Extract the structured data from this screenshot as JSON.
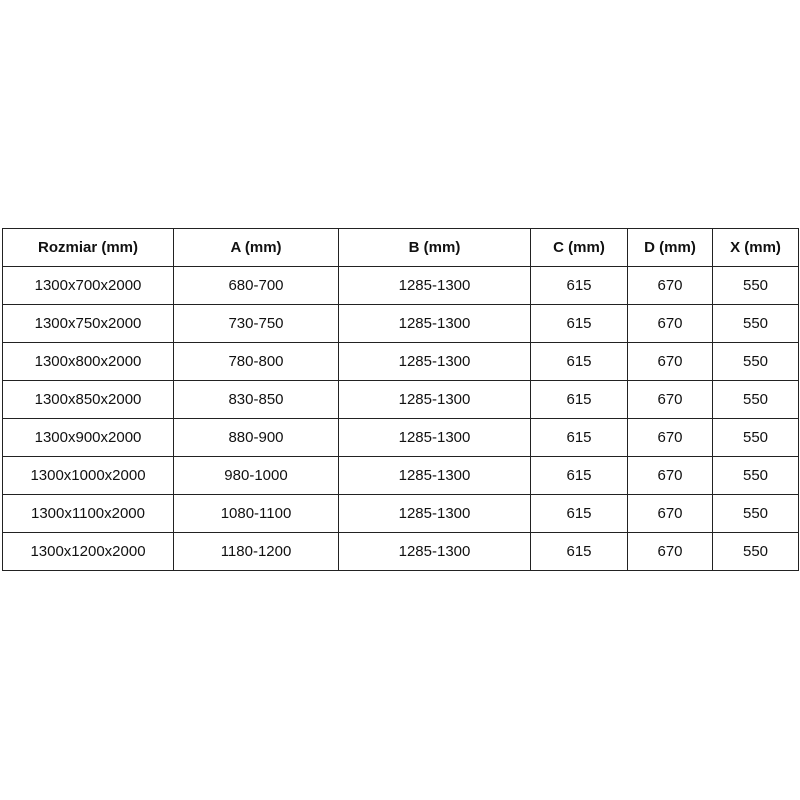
{
  "table": {
    "headers": [
      "Rozmiar (mm)",
      "A (mm)",
      "B (mm)",
      "C (mm)",
      "D (mm)",
      "X (mm)"
    ],
    "rows": [
      [
        "1300x700x2000",
        "680-700",
        "1285-1300",
        "615",
        "670",
        "550"
      ],
      [
        "1300x750x2000",
        "730-750",
        "1285-1300",
        "615",
        "670",
        "550"
      ],
      [
        "1300x800x2000",
        "780-800",
        "1285-1300",
        "615",
        "670",
        "550"
      ],
      [
        "1300x850x2000",
        "830-850",
        "1285-1300",
        "615",
        "670",
        "550"
      ],
      [
        "1300x900x2000",
        "880-900",
        "1285-1300",
        "615",
        "670",
        "550"
      ],
      [
        "1300x1000x2000",
        "980-1000",
        "1285-1300",
        "615",
        "670",
        "550"
      ],
      [
        "1300x1100x2000",
        "1080-1100",
        "1285-1300",
        "615",
        "670",
        "550"
      ],
      [
        "1300x1200x2000",
        "1180-1200",
        "1285-1300",
        "615",
        "670",
        "550"
      ]
    ]
  }
}
